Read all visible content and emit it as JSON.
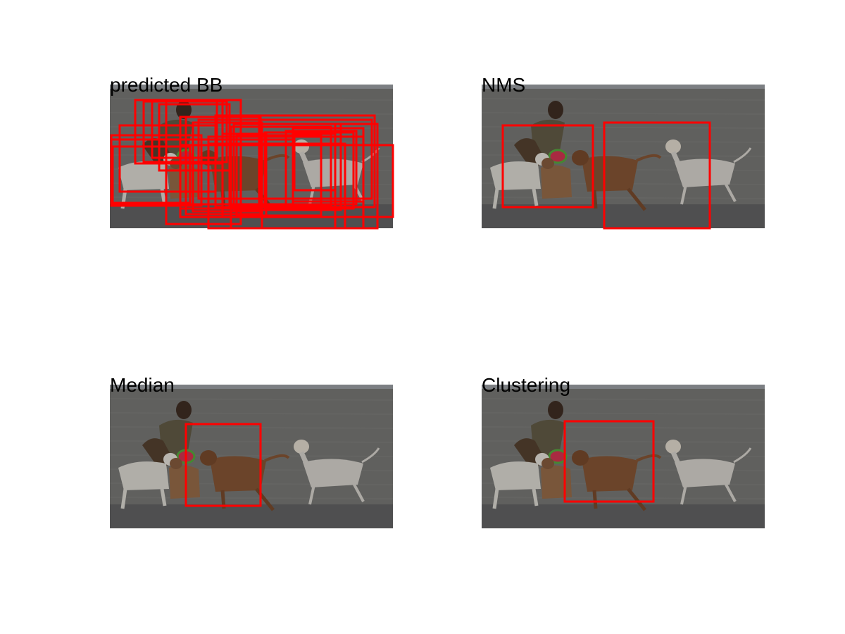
{
  "figure": {
    "panels": [
      {
        "title": "predicted BB"
      },
      {
        "title": "NMS"
      },
      {
        "title": "Median"
      },
      {
        "title": "Clustering"
      }
    ],
    "colors": {
      "box": "#ff0000",
      "water": "#6e6e6c",
      "sky": "#8e9196"
    }
  }
}
